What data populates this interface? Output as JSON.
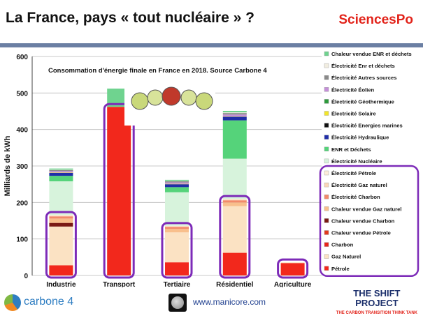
{
  "header": {
    "title": "La France, pays « tout nucléaire » ?",
    "brand": "SciencesPo"
  },
  "footer": {
    "left_brand": "carbone 4",
    "website": "www.manicore.com",
    "right_brand_line1": "THE SHIFT",
    "right_brand_line2": "PROJECT",
    "right_brand_tagline": "THE CARBON TRANSITION THINK TANK"
  },
  "chart_data": {
    "type": "bar",
    "stacked": true,
    "title": "Consommation d'énergie finale en France en 2018. Source Carbone 4",
    "ylabel": "Milliards de kWh",
    "xlabel": "",
    "ylim": [
      0,
      600
    ],
    "yticks": [
      0,
      100,
      200,
      300,
      400,
      500,
      600
    ],
    "grid": true,
    "legend_position": "right",
    "categories": [
      "Industrie",
      "Transport",
      "Tertiaire",
      "Résidentiel",
      "Agriculture"
    ],
    "series": [
      {
        "name": "Pétrole",
        "color": "#f2281c",
        "values": [
          28,
          462,
          36,
          62,
          34
        ]
      },
      {
        "name": "Gaz Naturel",
        "color": "#fbe2c3",
        "values": [
          106,
          0,
          82,
          128,
          2
        ]
      },
      {
        "name": "Charbon",
        "color": "#e8261b",
        "values": [
          0,
          0,
          0,
          0,
          0
        ]
      },
      {
        "name": "Chaleur vendue Pétrole",
        "color": "#e23a1e",
        "values": [
          0,
          0,
          0,
          0,
          0
        ]
      },
      {
        "name": "Chaleur vendue Charbon",
        "color": "#7a1a14",
        "values": [
          10,
          0,
          0,
          0,
          0
        ]
      },
      {
        "name": "Chaleur vendue Gaz naturel",
        "color": "#f8bf8c",
        "values": [
          12,
          0,
          10,
          10,
          0
        ]
      },
      {
        "name": "Électricité Charbon",
        "color": "#f28a6a",
        "values": [
          6,
          0,
          5,
          6,
          0
        ]
      },
      {
        "name": "Électricité Gaz naturel",
        "color": "#f9d6b8",
        "values": [
          2,
          0,
          2,
          2,
          0
        ]
      },
      {
        "name": "Électricité Pétrole",
        "color": "#fcecd8",
        "values": [
          2,
          0,
          1,
          2,
          0
        ]
      },
      {
        "name": "Électricité Nucléaire",
        "color": "#d7f3dc",
        "values": [
          92,
          0,
          92,
          110,
          0
        ]
      },
      {
        "name": "ENR et Déchets",
        "color": "#55d37a",
        "values": [
          15,
          0,
          14,
          105,
          0
        ]
      },
      {
        "name": "Électricité Hydraulique",
        "color": "#202ea8",
        "values": [
          8,
          0,
          8,
          10,
          0
        ]
      },
      {
        "name": "Électricité Energies marines",
        "color": "#111111",
        "values": [
          0,
          0,
          0,
          0,
          0
        ]
      },
      {
        "name": "Électricité Solaire",
        "color": "#f2e52a",
        "values": [
          1,
          0,
          1,
          1,
          0
        ]
      },
      {
        "name": "Électricité Géothermique",
        "color": "#2d9a3c",
        "values": [
          0,
          0,
          0,
          0,
          0
        ]
      },
      {
        "name": "Électricité Éolien",
        "color": "#c58fd9",
        "values": [
          4,
          0,
          4,
          5,
          0
        ]
      },
      {
        "name": "Électricité Autres sources",
        "color": "#8a8a8a",
        "values": [
          3,
          0,
          3,
          4,
          0
        ]
      },
      {
        "name": "Électricité Enr et déchets",
        "color": "#f1ede0",
        "values": [
          1,
          0,
          1,
          2,
          0
        ]
      },
      {
        "name": "Chaleur vendue ENR et déchets",
        "color": "#6fd38f",
        "values": [
          3,
          50,
          3,
          4,
          0
        ]
      }
    ]
  }
}
